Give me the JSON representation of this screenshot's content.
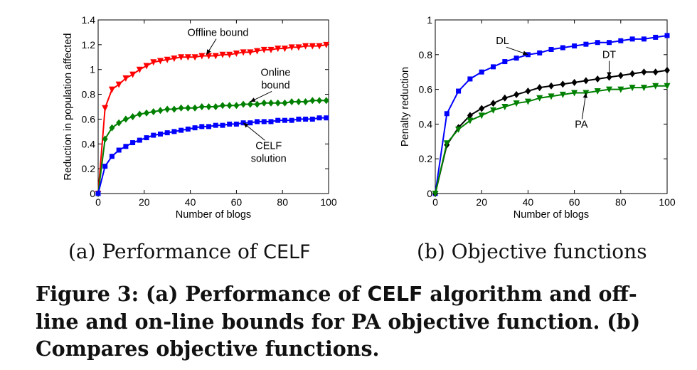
{
  "caption": {
    "lead": "Figure 3:  (a) Performance of ",
    "algo": "CELF",
    "rest": " algorithm and off-line and on-line bounds for PA objective function. (b) Compares objective functions."
  },
  "subcaptions": {
    "a_prefix": "(a) Performance of ",
    "a_algo": "CELF",
    "b": "(b) Objective functions"
  },
  "chart_data": [
    {
      "type": "line",
      "panel": "a",
      "xlabel": "Number of blogs",
      "ylabel": "Reduction in population affected",
      "xlim": [
        0,
        100
      ],
      "ylim": [
        0,
        1.4
      ],
      "xticks": [
        0,
        20,
        40,
        60,
        80,
        100
      ],
      "yticks": [
        0,
        0.2,
        0.4,
        0.6,
        0.8,
        1,
        1.2,
        1.4
      ],
      "ytick_labels": [
        "0",
        "0.2",
        "0.4",
        "0.6",
        "0.8",
        "1",
        "1.2",
        "1.4"
      ],
      "grid": false,
      "series": [
        {
          "name": "Offline bound",
          "color": "#ff0000",
          "marker": "triangle-down",
          "x": [
            0,
            3,
            6,
            9,
            12,
            15,
            18,
            21,
            24,
            27,
            30,
            33,
            36,
            39,
            42,
            45,
            48,
            51,
            54,
            57,
            60,
            63,
            66,
            69,
            72,
            75,
            78,
            81,
            84,
            87,
            90,
            93,
            96,
            99
          ],
          "y": [
            0,
            0.69,
            0.84,
            0.88,
            0.93,
            0.96,
            1.0,
            1.03,
            1.06,
            1.07,
            1.08,
            1.09,
            1.1,
            1.1,
            1.1,
            1.11,
            1.11,
            1.11,
            1.12,
            1.12,
            1.13,
            1.14,
            1.14,
            1.15,
            1.16,
            1.16,
            1.17,
            1.17,
            1.18,
            1.18,
            1.19,
            1.19,
            1.19,
            1.2
          ]
        },
        {
          "name": "Online bound",
          "color": "#008000",
          "marker": "diamond",
          "x": [
            0,
            3,
            6,
            9,
            12,
            15,
            18,
            21,
            24,
            27,
            30,
            33,
            36,
            39,
            42,
            45,
            48,
            51,
            54,
            57,
            60,
            63,
            66,
            69,
            72,
            75,
            78,
            81,
            84,
            87,
            90,
            93,
            96,
            99
          ],
          "y": [
            0,
            0.44,
            0.53,
            0.57,
            0.6,
            0.62,
            0.64,
            0.65,
            0.66,
            0.67,
            0.68,
            0.68,
            0.69,
            0.69,
            0.69,
            0.7,
            0.7,
            0.7,
            0.71,
            0.71,
            0.71,
            0.72,
            0.72,
            0.72,
            0.73,
            0.73,
            0.73,
            0.73,
            0.74,
            0.74,
            0.74,
            0.75,
            0.75,
            0.75
          ]
        },
        {
          "name": "CELF solution",
          "color": "#0000ff",
          "marker": "square",
          "x": [
            0,
            3,
            6,
            9,
            12,
            15,
            18,
            21,
            24,
            27,
            30,
            33,
            36,
            39,
            42,
            45,
            48,
            51,
            54,
            57,
            60,
            63,
            66,
            69,
            72,
            75,
            78,
            81,
            84,
            87,
            90,
            93,
            96,
            99
          ],
          "y": [
            0,
            0.22,
            0.3,
            0.35,
            0.38,
            0.41,
            0.43,
            0.45,
            0.47,
            0.48,
            0.49,
            0.5,
            0.51,
            0.52,
            0.53,
            0.54,
            0.54,
            0.55,
            0.55,
            0.56,
            0.56,
            0.57,
            0.57,
            0.58,
            0.58,
            0.58,
            0.59,
            0.59,
            0.59,
            0.6,
            0.6,
            0.6,
            0.61,
            0.61
          ]
        }
      ],
      "annotations": [
        {
          "lines": [
            "Offline bound"
          ],
          "x": 52,
          "y": 1.27,
          "arrow_to": [
            47,
            1.12
          ]
        },
        {
          "lines": [
            "Online",
            "bound"
          ],
          "x": 77,
          "y": 0.95,
          "arrow_to": [
            66,
            0.74
          ]
        },
        {
          "lines": [
            "CELF",
            "solution"
          ],
          "x": 74,
          "y": 0.36,
          "arrow_to": [
            63,
            0.57
          ]
        }
      ]
    },
    {
      "type": "line",
      "panel": "b",
      "xlabel": "Number of blogs",
      "ylabel": "Penalty reduction",
      "xlim": [
        0,
        100
      ],
      "ylim": [
        0,
        1
      ],
      "xticks": [
        0,
        20,
        40,
        60,
        80,
        100
      ],
      "yticks": [
        0,
        0.2,
        0.4,
        0.6,
        0.8,
        1
      ],
      "ytick_labels": [
        "0",
        "0.2",
        "0.4",
        "0.6",
        "0.8",
        "1"
      ],
      "grid": false,
      "series": [
        {
          "name": "DL",
          "color": "#0000ff",
          "marker": "square",
          "x": [
            0,
            5,
            10,
            15,
            20,
            25,
            30,
            35,
            40,
            45,
            50,
            55,
            60,
            65,
            70,
            75,
            80,
            85,
            90,
            95,
            100
          ],
          "y": [
            0,
            0.46,
            0.59,
            0.66,
            0.7,
            0.73,
            0.76,
            0.78,
            0.8,
            0.81,
            0.83,
            0.84,
            0.85,
            0.86,
            0.87,
            0.87,
            0.88,
            0.89,
            0.89,
            0.9,
            0.91
          ]
        },
        {
          "name": "DT",
          "color": "#000000",
          "marker": "diamond",
          "x": [
            0,
            5,
            10,
            15,
            20,
            25,
            30,
            35,
            40,
            45,
            50,
            55,
            60,
            65,
            70,
            75,
            80,
            85,
            90,
            95,
            100
          ],
          "y": [
            0,
            0.28,
            0.38,
            0.45,
            0.49,
            0.52,
            0.55,
            0.57,
            0.59,
            0.61,
            0.62,
            0.63,
            0.64,
            0.65,
            0.66,
            0.67,
            0.68,
            0.69,
            0.7,
            0.7,
            0.71
          ]
        },
        {
          "name": "PA",
          "color": "#008000",
          "marker": "triangle-down",
          "x": [
            0,
            5,
            10,
            15,
            20,
            25,
            30,
            35,
            40,
            45,
            50,
            55,
            60,
            65,
            70,
            75,
            80,
            85,
            90,
            95,
            100
          ],
          "y": [
            0,
            0.29,
            0.37,
            0.42,
            0.45,
            0.48,
            0.5,
            0.52,
            0.53,
            0.55,
            0.56,
            0.57,
            0.58,
            0.58,
            0.59,
            0.6,
            0.6,
            0.61,
            0.61,
            0.62,
            0.62
          ]
        }
      ],
      "annotations": [
        {
          "lines": [
            "DL"
          ],
          "x": 29,
          "y": 0.86,
          "arrow_to": [
            40,
            0.8
          ]
        },
        {
          "lines": [
            "DT"
          ],
          "x": 75,
          "y": 0.78,
          "arrow_to": [
            75,
            0.67
          ]
        },
        {
          "lines": [
            "PA"
          ],
          "x": 63,
          "y": 0.38,
          "arrow_to": [
            65,
            0.58
          ]
        }
      ]
    }
  ]
}
